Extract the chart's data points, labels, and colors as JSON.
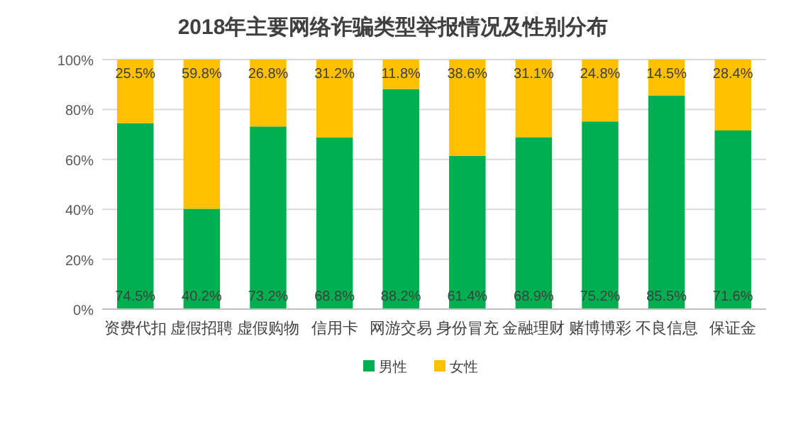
{
  "chart_data": {
    "type": "bar",
    "stacked": true,
    "title": "2018年主要网络诈骗类型举报情况及性别分布",
    "categories": [
      "资费代扣",
      "虚假招聘",
      "虚假购物",
      "信用卡",
      "网游交易",
      "身份冒充",
      "金融理财",
      "赌博博彩",
      "不良信息",
      "保证金"
    ],
    "series": [
      {
        "name": "男性",
        "color": "#00b050",
        "values": [
          74.5,
          40.2,
          73.2,
          68.8,
          88.2,
          61.4,
          68.9,
          75.2,
          85.5,
          71.6
        ],
        "value_labels": [
          "74.5%",
          "40.2%",
          "73.2%",
          "68.8%",
          "88.2%",
          "61.4%",
          "68.9%",
          "75.2%",
          "85.5%",
          "71.6%"
        ]
      },
      {
        "name": "女性",
        "color": "#ffc000",
        "values": [
          25.5,
          59.8,
          26.8,
          31.2,
          11.8,
          38.6,
          31.1,
          24.8,
          14.5,
          28.4
        ],
        "value_labels": [
          "25.5%",
          "59.8%",
          "26.8%",
          "31.2%",
          "11.8%",
          "38.6%",
          "31.1%",
          "24.8%",
          "14.5%",
          "28.4%"
        ]
      }
    ],
    "ylim": [
      0,
      100
    ],
    "yticks": [
      {
        "value": 0,
        "label": "0%"
      },
      {
        "value": 20,
        "label": "20%"
      },
      {
        "value": 40,
        "label": "40%"
      },
      {
        "value": 60,
        "label": "60%"
      },
      {
        "value": 80,
        "label": "80%"
      },
      {
        "value": 100,
        "label": "100%"
      }
    ],
    "grid": "y",
    "legend": "bottom"
  }
}
